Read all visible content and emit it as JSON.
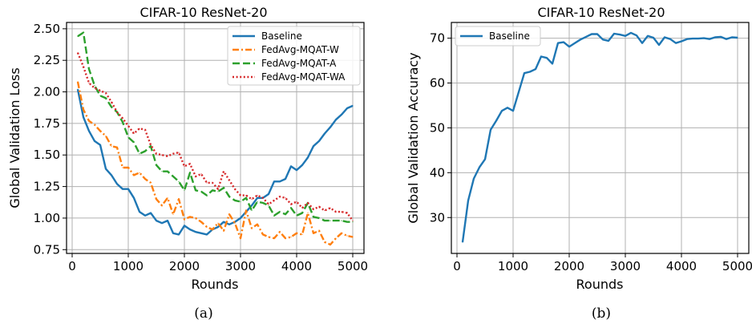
{
  "chart_data": [
    {
      "type": "line",
      "title": "CIFAR-10 ResNet-20",
      "xlabel": "Rounds",
      "ylabel": "Global Validation Loss",
      "caption": "(a)",
      "xlim": [
        -100,
        5200
      ],
      "ylim": [
        0.72,
        2.55
      ],
      "xticks": [
        "0",
        "1000",
        "2000",
        "3000",
        "4000",
        "5000"
      ],
      "yticks": [
        "0.75",
        "1.00",
        "1.25",
        "1.50",
        "1.75",
        "2.00",
        "2.25",
        "2.50"
      ],
      "grid": true,
      "legend_position": "top-right",
      "x": [
        100,
        200,
        300,
        400,
        500,
        600,
        700,
        800,
        900,
        1000,
        1100,
        1200,
        1300,
        1400,
        1500,
        1600,
        1700,
        1800,
        1900,
        2000,
        2100,
        2200,
        2300,
        2400,
        2500,
        2600,
        2700,
        2800,
        2900,
        3000,
        3100,
        3200,
        3300,
        3400,
        3500,
        3600,
        3700,
        3800,
        3900,
        4000,
        4100,
        4200,
        4300,
        4400,
        4500,
        4600,
        4700,
        4800,
        4900,
        5000
      ],
      "series": [
        {
          "name": "Baseline",
          "color": "#1f77b4",
          "dash": "solid",
          "values": [
            2.02,
            1.8,
            1.69,
            1.61,
            1.58,
            1.39,
            1.34,
            1.27,
            1.23,
            1.23,
            1.16,
            1.05,
            1.02,
            1.04,
            0.98,
            0.96,
            0.98,
            0.88,
            0.87,
            0.94,
            0.91,
            0.89,
            0.88,
            0.87,
            0.91,
            0.93,
            0.97,
            0.95,
            0.97,
            1.0,
            1.05,
            1.1,
            1.16,
            1.16,
            1.19,
            1.29,
            1.29,
            1.31,
            1.41,
            1.38,
            1.42,
            1.48,
            1.57,
            1.61,
            1.67,
            1.72,
            1.78,
            1.82,
            1.87,
            1.89
          ]
        },
        {
          "name": "FedAvg-MQAT-W",
          "color": "#ff7f0e",
          "dash": "dashdot",
          "values": [
            2.08,
            1.86,
            1.77,
            1.74,
            1.69,
            1.65,
            1.57,
            1.56,
            1.4,
            1.4,
            1.34,
            1.36,
            1.31,
            1.28,
            1.15,
            1.1,
            1.16,
            1.03,
            1.15,
            0.99,
            1.01,
            1.0,
            0.97,
            0.93,
            0.91,
            0.96,
            0.9,
            1.03,
            0.96,
            0.84,
            1.06,
            0.92,
            0.95,
            0.87,
            0.85,
            0.84,
            0.89,
            0.84,
            0.85,
            0.88,
            0.87,
            1.04,
            0.88,
            0.9,
            0.81,
            0.79,
            0.84,
            0.88,
            0.86,
            0.85
          ]
        },
        {
          "name": "FedAvg-MQAT-A",
          "color": "#2ca02c",
          "dash": "dashed",
          "values": [
            2.44,
            2.47,
            2.18,
            2.05,
            1.97,
            1.95,
            1.88,
            1.84,
            1.76,
            1.64,
            1.6,
            1.51,
            1.53,
            1.57,
            1.42,
            1.37,
            1.37,
            1.33,
            1.29,
            1.22,
            1.36,
            1.22,
            1.21,
            1.18,
            1.22,
            1.21,
            1.24,
            1.17,
            1.14,
            1.13,
            1.16,
            1.06,
            1.13,
            1.12,
            1.1,
            1.02,
            1.05,
            1.03,
            1.08,
            1.02,
            1.04,
            1.12,
            1.01,
            1.0,
            0.98,
            0.98,
            0.98,
            0.98,
            0.97,
            0.97
          ]
        },
        {
          "name": "FedAvg-MQAT-WA",
          "color": "#d62728",
          "dash": "dotted",
          "values": [
            2.31,
            2.2,
            2.07,
            2.03,
            2.01,
            1.99,
            1.92,
            1.84,
            1.79,
            1.73,
            1.67,
            1.71,
            1.7,
            1.58,
            1.51,
            1.5,
            1.49,
            1.51,
            1.52,
            1.41,
            1.43,
            1.33,
            1.35,
            1.28,
            1.28,
            1.23,
            1.37,
            1.3,
            1.23,
            1.18,
            1.18,
            1.15,
            1.18,
            1.16,
            1.11,
            1.14,
            1.17,
            1.16,
            1.11,
            1.13,
            1.08,
            1.12,
            1.07,
            1.09,
            1.06,
            1.08,
            1.05,
            1.05,
            1.04,
            0.98
          ]
        }
      ]
    },
    {
      "type": "line",
      "title": "CIFAR-10 ResNet-20",
      "xlabel": "Rounds",
      "ylabel": "Global Validation Accuracy",
      "caption": "(b)",
      "xlim": [
        -100,
        5200
      ],
      "ylim": [
        22,
        73.5
      ],
      "xticks": [
        "0",
        "1000",
        "2000",
        "3000",
        "4000",
        "5000"
      ],
      "yticks": [
        "30",
        "40",
        "50",
        "60",
        "70"
      ],
      "grid": true,
      "legend_position": "top-left",
      "x": [
        100,
        200,
        300,
        400,
        500,
        600,
        700,
        800,
        900,
        1000,
        1100,
        1200,
        1300,
        1400,
        1500,
        1600,
        1700,
        1800,
        1900,
        2000,
        2100,
        2200,
        2300,
        2400,
        2500,
        2600,
        2700,
        2800,
        2900,
        3000,
        3100,
        3200,
        3300,
        3400,
        3500,
        3600,
        3700,
        3800,
        3900,
        4000,
        4100,
        4200,
        4300,
        4400,
        4500,
        4600,
        4700,
        4800,
        4900,
        5000
      ],
      "series": [
        {
          "name": "Baseline",
          "color": "#1f77b4",
          "dash": "solid",
          "values": [
            24.5,
            33.8,
            38.7,
            41.2,
            43.0,
            49.6,
            51.6,
            53.8,
            54.5,
            53.8,
            58.0,
            62.2,
            62.5,
            63.1,
            65.9,
            65.6,
            64.3,
            68.9,
            69.1,
            68.1,
            68.9,
            69.7,
            70.3,
            70.9,
            70.9,
            69.7,
            69.4,
            71.0,
            70.8,
            70.5,
            71.2,
            70.6,
            68.9,
            70.5,
            70.1,
            68.5,
            70.2,
            69.8,
            68.9,
            69.3,
            69.8,
            69.9,
            69.9,
            70.0,
            69.8,
            70.2,
            70.3,
            69.8,
            70.2,
            70.1
          ]
        }
      ]
    }
  ]
}
